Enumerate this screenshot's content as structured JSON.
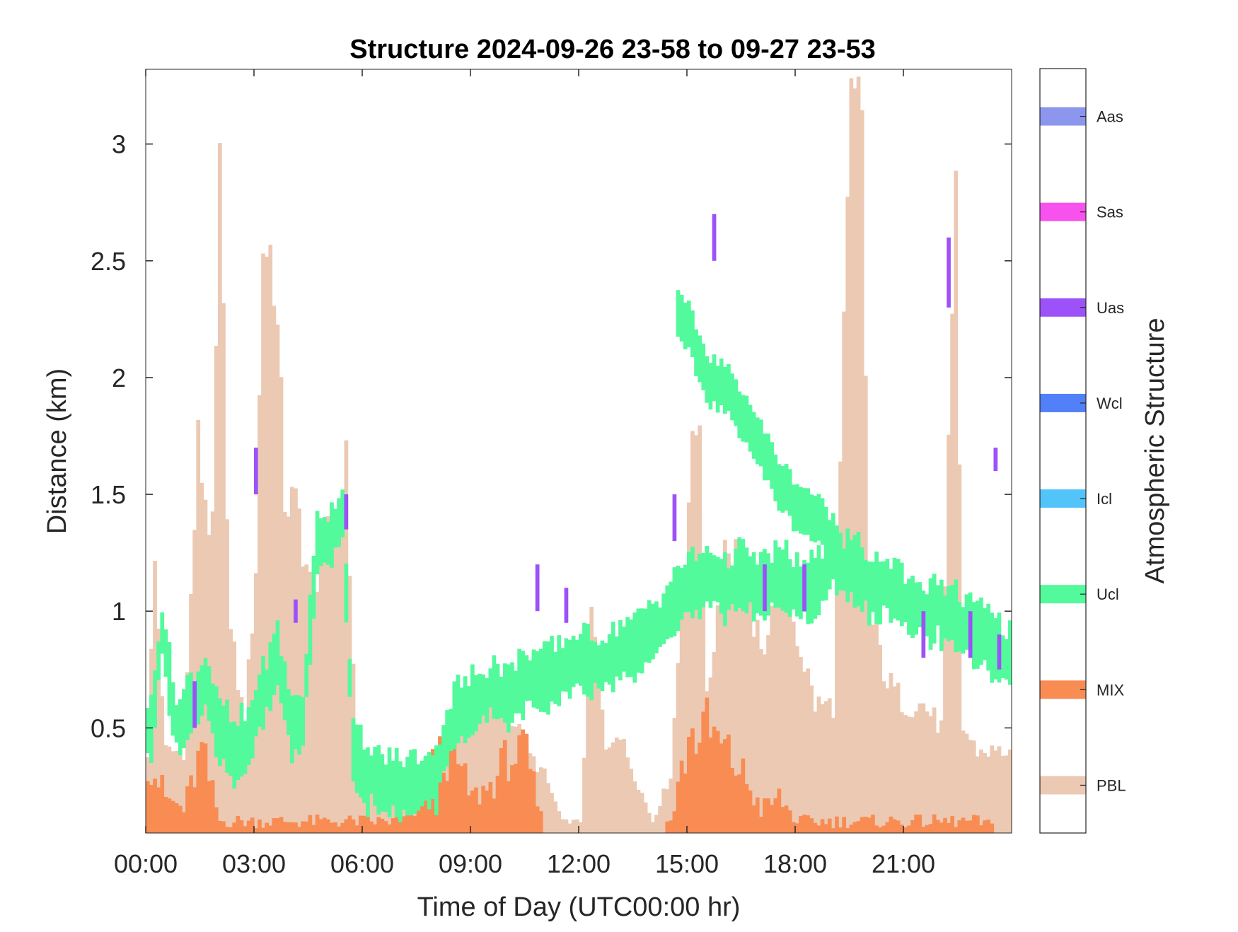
{
  "chart_data": {
    "type": "heatmap",
    "title": "Structure 2024-09-26 23-58 to 09-27 23-53",
    "xlabel": "Time of Day (UTC00:00 hr)",
    "ylabel": "Distance (km)",
    "xlim": [
      0,
      24
    ],
    "ylim": [
      0.05,
      3.32
    ],
    "x_ticks": [
      0,
      3,
      6,
      9,
      12,
      15,
      18,
      21
    ],
    "x_tick_labels": [
      "00:00",
      "03:00",
      "06:00",
      "09:00",
      "12:00",
      "15:00",
      "18:00",
      "21:00"
    ],
    "y_ticks": [
      0.5,
      1,
      1.5,
      2,
      2.5,
      3
    ],
    "y_tick_labels": [
      "0.5",
      "1",
      "1.5",
      "2",
      "2.5",
      "3"
    ],
    "colorbar": {
      "label": "Atmospheric Structure",
      "classes": [
        {
          "code": "PBL",
          "color": "#ecc9b3"
        },
        {
          "code": "MIX",
          "color": "#f88c52"
        },
        {
          "code": "Ucl",
          "color": "#52fa9c"
        },
        {
          "code": "Icl",
          "color": "#52c4fa"
        },
        {
          "code": "Wcl",
          "color": "#5280f8"
        },
        {
          "code": "Uas",
          "color": "#9c52f8"
        },
        {
          "code": "Sas",
          "color": "#f852ee"
        },
        {
          "code": "Aas",
          "color": "#8c96ec"
        }
      ]
    },
    "pbl_top_profile": [
      [
        0.0,
        0.4
      ],
      [
        0.2,
        1.2
      ],
      [
        0.5,
        0.4
      ],
      [
        1.0,
        0.4
      ],
      [
        1.4,
        1.7
      ],
      [
        1.8,
        1.3
      ],
      [
        2.0,
        2.8
      ],
      [
        2.3,
        0.9
      ],
      [
        2.7,
        0.5
      ],
      [
        3.0,
        1.2
      ],
      [
        3.2,
        2.6
      ],
      [
        3.5,
        2.5
      ],
      [
        3.8,
        1.5
      ],
      [
        4.2,
        1.4
      ],
      [
        4.5,
        1.1
      ],
      [
        5.0,
        1.3
      ],
      [
        5.5,
        1.6
      ],
      [
        5.8,
        0.4
      ],
      [
        6.5,
        0.3
      ],
      [
        7.5,
        0.3
      ],
      [
        8.2,
        0.4
      ],
      [
        9.0,
        0.6
      ],
      [
        10.0,
        0.6
      ],
      [
        10.5,
        0.4
      ],
      [
        11.0,
        0.3
      ],
      [
        11.5,
        0.1
      ],
      [
        12.0,
        0.1
      ],
      [
        12.3,
        1.0
      ],
      [
        12.7,
        0.4
      ],
      [
        13.0,
        0.5
      ],
      [
        13.5,
        0.3
      ],
      [
        14.0,
        0.1
      ],
      [
        14.5,
        0.3
      ],
      [
        15.0,
        1.5
      ],
      [
        15.3,
        1.9
      ],
      [
        15.5,
        0.6
      ],
      [
        16.0,
        1.3
      ],
      [
        16.5,
        1.2
      ],
      [
        17.0,
        0.8
      ],
      [
        17.5,
        1.2
      ],
      [
        18.0,
        0.9
      ],
      [
        18.5,
        0.6
      ],
      [
        19.0,
        0.6
      ],
      [
        19.5,
        3.1
      ],
      [
        19.8,
        3.1
      ],
      [
        20.0,
        1.0
      ],
      [
        20.5,
        0.7
      ],
      [
        21.0,
        0.6
      ],
      [
        21.5,
        0.6
      ],
      [
        22.0,
        0.5
      ],
      [
        22.4,
        2.7
      ],
      [
        22.6,
        0.5
      ],
      [
        23.0,
        0.4
      ],
      [
        23.5,
        0.4
      ],
      [
        24.0,
        0.4
      ]
    ],
    "ucl_profile": [
      [
        0.1,
        0.5
      ],
      [
        0.4,
        0.9
      ],
      [
        0.8,
        0.5
      ],
      [
        1.2,
        0.6
      ],
      [
        1.6,
        0.7
      ],
      [
        2.0,
        0.5
      ],
      [
        2.4,
        0.4
      ],
      [
        2.8,
        0.45
      ],
      [
        3.2,
        0.65
      ],
      [
        3.6,
        0.8
      ],
      [
        4.0,
        0.5
      ],
      [
        4.3,
        0.55
      ],
      [
        4.7,
        1.3
      ],
      [
        5.0,
        1.3
      ],
      [
        5.4,
        1.4
      ],
      [
        5.7,
        0.4
      ],
      [
        6.0,
        0.3
      ],
      [
        6.5,
        0.25
      ],
      [
        7.0,
        0.25
      ],
      [
        7.5,
        0.25
      ],
      [
        8.0,
        0.3
      ],
      [
        8.5,
        0.55
      ],
      [
        9.0,
        0.6
      ],
      [
        9.5,
        0.65
      ],
      [
        10.0,
        0.65
      ],
      [
        10.5,
        0.7
      ],
      [
        11.0,
        0.72
      ],
      [
        11.5,
        0.75
      ],
      [
        12.0,
        0.8
      ],
      [
        12.5,
        0.75
      ],
      [
        13.0,
        0.8
      ],
      [
        13.5,
        0.85
      ],
      [
        14.0,
        0.9
      ],
      [
        14.5,
        1.0
      ],
      [
        15.0,
        1.1
      ],
      [
        15.5,
        1.15
      ],
      [
        16.0,
        1.1
      ],
      [
        16.5,
        1.15
      ],
      [
        17.0,
        1.1
      ],
      [
        17.5,
        1.15
      ],
      [
        18.0,
        1.1
      ],
      [
        18.5,
        1.1
      ],
      [
        19.0,
        1.2
      ],
      [
        19.5,
        1.2
      ],
      [
        20.0,
        1.1
      ],
      [
        20.5,
        1.1
      ],
      [
        21.0,
        1.05
      ],
      [
        21.5,
        1.0
      ],
      [
        22.0,
        1.0
      ],
      [
        22.5,
        0.95
      ],
      [
        23.0,
        0.9
      ],
      [
        23.5,
        0.85
      ],
      [
        23.9,
        0.8
      ]
    ],
    "ucl_upper_layer": [
      [
        14.7,
        2.25
      ],
      [
        15.0,
        2.2
      ],
      [
        15.5,
        2.0
      ],
      [
        16.0,
        1.95
      ],
      [
        16.5,
        1.85
      ],
      [
        17.0,
        1.7
      ],
      [
        17.5,
        1.55
      ],
      [
        18.0,
        1.45
      ],
      [
        18.5,
        1.4
      ],
      [
        19.0,
        1.3
      ],
      [
        19.3,
        1.2
      ]
    ],
    "mix_profile": [
      [
        0.0,
        0.38
      ],
      [
        0.5,
        0.2
      ],
      [
        1.0,
        0.15
      ],
      [
        1.5,
        0.4
      ],
      [
        2.0,
        0.1
      ],
      [
        2.5,
        0.1
      ],
      [
        3.0,
        0.1
      ],
      [
        3.5,
        0.1
      ],
      [
        4.0,
        0.1
      ],
      [
        5.0,
        0.1
      ],
      [
        6.0,
        0.1
      ],
      [
        7.0,
        0.1
      ],
      [
        7.5,
        0.15
      ],
      [
        8.0,
        0.38
      ],
      [
        8.5,
        0.38
      ],
      [
        9.0,
        0.2
      ],
      [
        9.5,
        0.25
      ],
      [
        10.0,
        0.38
      ],
      [
        10.5,
        0.38
      ],
      [
        11.0,
        0.05
      ],
      [
        12.0,
        0.05
      ],
      [
        13.0,
        0.05
      ],
      [
        14.0,
        0.05
      ],
      [
        14.5,
        0.1
      ],
      [
        15.0,
        0.45
      ],
      [
        15.5,
        0.5
      ],
      [
        16.0,
        0.4
      ],
      [
        16.5,
        0.3
      ],
      [
        17.0,
        0.15
      ],
      [
        17.5,
        0.2
      ],
      [
        18.0,
        0.1
      ],
      [
        19.0,
        0.1
      ],
      [
        20.0,
        0.1
      ],
      [
        21.0,
        0.1
      ],
      [
        22.0,
        0.1
      ],
      [
        23.0,
        0.1
      ],
      [
        24.0,
        0.05
      ]
    ]
  }
}
